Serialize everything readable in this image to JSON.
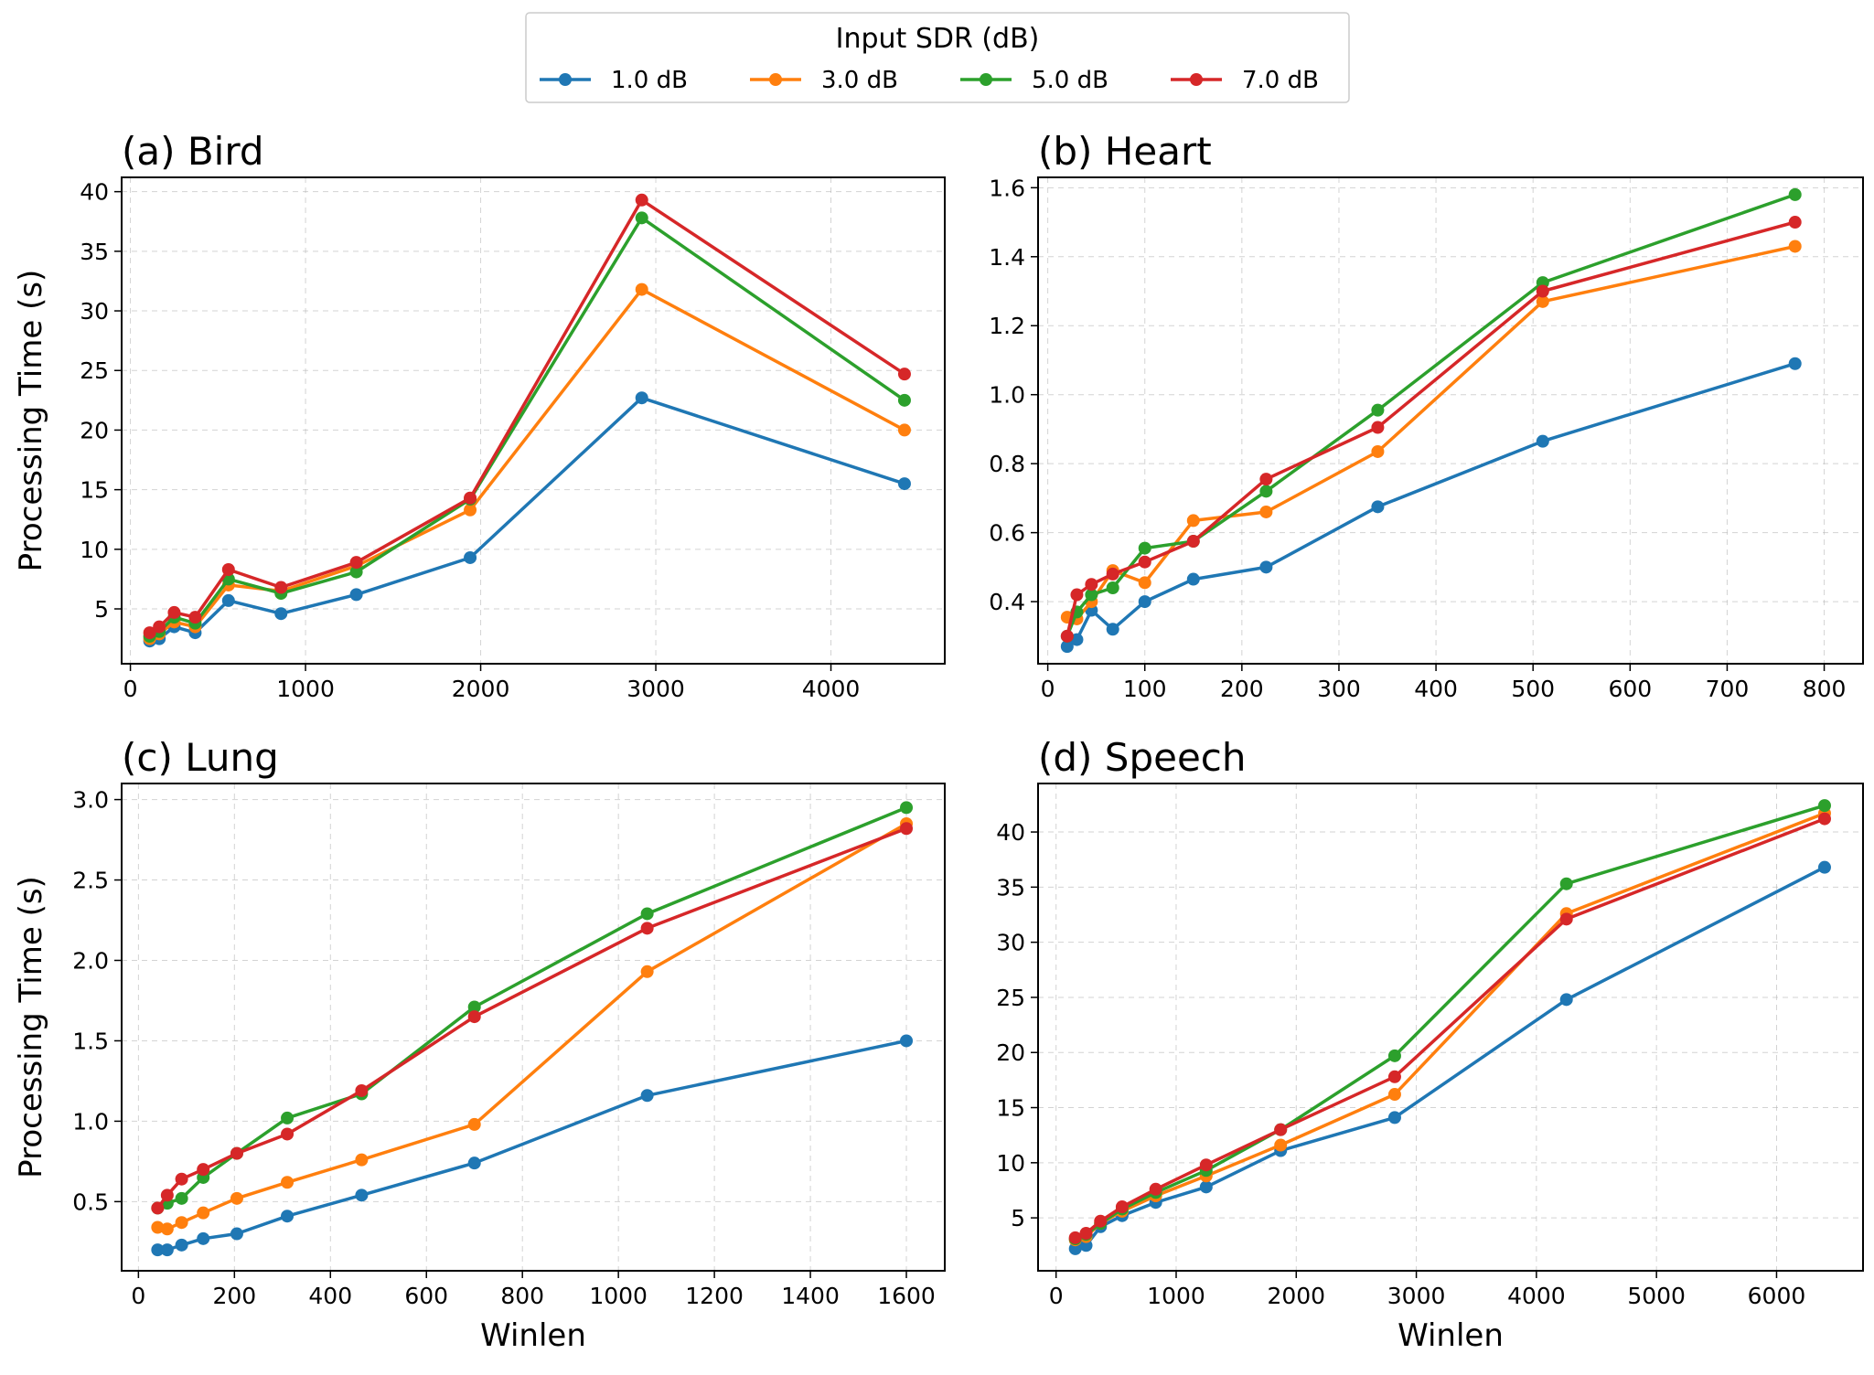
{
  "legend": {
    "title": "Input SDR (dB)",
    "location": "upper-center"
  },
  "series_styles": [
    {
      "name": "1.0 dB",
      "color": "#1f77b4"
    },
    {
      "name": "3.0 dB",
      "color": "#ff7f0e"
    },
    {
      "name": "5.0 dB",
      "color": "#2ca02c"
    },
    {
      "name": "7.0 dB",
      "color": "#d62728"
    }
  ],
  "chart_data": [
    {
      "type": "line",
      "title": "(a) Bird",
      "xlabel": "",
      "ylabel": "Processing Time (s)",
      "xlim": [
        -50,
        4650
      ],
      "ylim": [
        0.4,
        41.2
      ],
      "xticks": [
        0,
        1000,
        2000,
        3000,
        4000
      ],
      "yticks": [
        5,
        10,
        15,
        20,
        25,
        30,
        35,
        40
      ],
      "grid": true,
      "x": [
        110,
        165,
        250,
        370,
        560,
        860,
        1290,
        1940,
        2920,
        4420
      ],
      "series": [
        {
          "name": "1.0 dB",
          "values": [
            2.3,
            2.5,
            3.5,
            3.0,
            5.7,
            4.6,
            6.2,
            9.3,
            22.7,
            15.5
          ]
        },
        {
          "name": "3.0 dB",
          "values": [
            2.5,
            2.9,
            3.9,
            3.5,
            7.0,
            6.5,
            8.6,
            13.3,
            31.8,
            20.0
          ]
        },
        {
          "name": "5.0 dB",
          "values": [
            2.7,
            3.1,
            4.3,
            3.8,
            7.5,
            6.3,
            8.1,
            14.2,
            37.8,
            22.5
          ]
        },
        {
          "name": "7.0 dB",
          "values": [
            3.0,
            3.5,
            4.7,
            4.3,
            8.3,
            6.8,
            8.9,
            14.3,
            39.3,
            24.7
          ]
        }
      ]
    },
    {
      "type": "line",
      "title": "(b) Heart",
      "xlabel": "",
      "ylabel": "",
      "xlim": [
        -10,
        840
      ],
      "ylim": [
        0.22,
        1.63
      ],
      "xticks": [
        0,
        100,
        200,
        300,
        400,
        500,
        600,
        700,
        800
      ],
      "yticks": [
        0.4,
        0.6,
        0.8,
        1.0,
        1.2,
        1.4,
        1.6
      ],
      "grid": true,
      "x": [
        20,
        30,
        45,
        67,
        100,
        150,
        225,
        340,
        510,
        770
      ],
      "series": [
        {
          "name": "1.0 dB",
          "values": [
            0.27,
            0.29,
            0.375,
            0.32,
            0.4,
            0.465,
            0.5,
            0.675,
            0.865,
            1.09
          ]
        },
        {
          "name": "3.0 dB",
          "values": [
            0.355,
            0.35,
            0.4,
            0.49,
            0.455,
            0.635,
            0.66,
            0.835,
            1.27,
            1.43
          ]
        },
        {
          "name": "5.0 dB",
          "values": [
            0.3,
            0.37,
            0.42,
            0.44,
            0.555,
            0.575,
            0.72,
            0.955,
            1.325,
            1.58
          ]
        },
        {
          "name": "7.0 dB",
          "values": [
            0.3,
            0.42,
            0.45,
            0.48,
            0.515,
            0.575,
            0.755,
            0.905,
            1.3,
            1.5
          ]
        }
      ]
    },
    {
      "type": "line",
      "title": "(c) Lung",
      "xlabel": "Winlen",
      "ylabel": "Processing Time (s)",
      "xlim": [
        -35,
        1680
      ],
      "ylim": [
        0.07,
        3.1
      ],
      "xticks": [
        0,
        200,
        400,
        600,
        800,
        1000,
        1200,
        1400,
        1600
      ],
      "yticks": [
        0.5,
        1.0,
        1.5,
        2.0,
        2.5,
        3.0
      ],
      "grid": true,
      "x": [
        40,
        60,
        90,
        135,
        205,
        310,
        465,
        700,
        1060,
        1600
      ],
      "series": [
        {
          "name": "1.0 dB",
          "values": [
            0.2,
            0.2,
            0.23,
            0.27,
            0.3,
            0.41,
            0.54,
            0.74,
            1.16,
            1.5
          ]
        },
        {
          "name": "3.0 dB",
          "values": [
            0.34,
            0.33,
            0.37,
            0.43,
            0.52,
            0.62,
            0.76,
            0.98,
            1.93,
            2.85
          ]
        },
        {
          "name": "5.0 dB",
          "values": [
            0.46,
            0.49,
            0.52,
            0.65,
            0.8,
            1.02,
            1.17,
            1.71,
            2.29,
            2.95
          ]
        },
        {
          "name": "7.0 dB",
          "values": [
            0.46,
            0.54,
            0.64,
            0.7,
            0.8,
            0.92,
            1.19,
            1.65,
            2.2,
            2.82
          ]
        }
      ]
    },
    {
      "type": "line",
      "title": "(d) Speech",
      "xlabel": "Winlen",
      "ylabel": "",
      "xlim": [
        -150,
        6720
      ],
      "ylim": [
        0.2,
        44.4
      ],
      "xticks": [
        0,
        1000,
        2000,
        3000,
        4000,
        5000,
        6000
      ],
      "yticks": [
        5,
        10,
        15,
        20,
        25,
        30,
        35,
        40
      ],
      "grid": true,
      "x": [
        160,
        250,
        370,
        550,
        830,
        1250,
        1870,
        2820,
        4250,
        6400
      ],
      "series": [
        {
          "name": "1.0 dB",
          "values": [
            2.2,
            2.5,
            4.2,
            5.2,
            6.4,
            7.8,
            11.1,
            14.1,
            24.8,
            36.8
          ]
        },
        {
          "name": "3.0 dB",
          "values": [
            3.0,
            3.3,
            4.5,
            5.6,
            7.0,
            8.8,
            11.6,
            16.2,
            32.6,
            41.7
          ]
        },
        {
          "name": "5.0 dB",
          "values": [
            3.1,
            3.5,
            4.5,
            5.8,
            7.3,
            9.3,
            13.0,
            19.7,
            35.3,
            42.4
          ]
        },
        {
          "name": "7.0 dB",
          "values": [
            3.2,
            3.6,
            4.7,
            6.0,
            7.6,
            9.8,
            13.0,
            17.8,
            32.1,
            41.2
          ]
        }
      ]
    }
  ]
}
